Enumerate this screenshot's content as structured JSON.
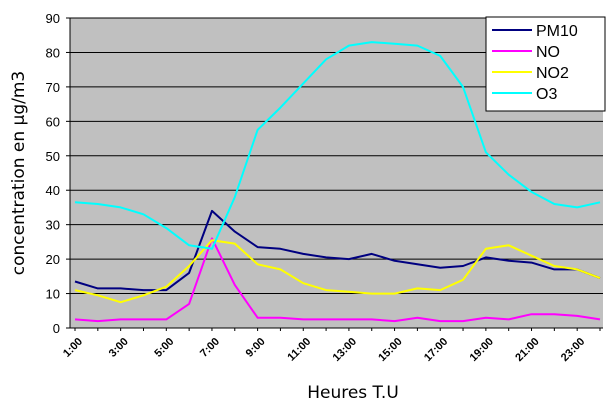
{
  "chart_data": {
    "type": "line",
    "xlabel": "Heures T.U",
    "ylabel": "concentration en µg/m3",
    "ylim": [
      0,
      90
    ],
    "yticks": [
      0,
      10,
      20,
      30,
      40,
      50,
      60,
      70,
      80,
      90
    ],
    "grid": true,
    "plot_background": "#c0c0c0",
    "legend_position": "top-right",
    "x_tick_labels": [
      "1:00",
      "3:00",
      "5:00",
      "7:00",
      "9:00",
      "11:00",
      "13:00",
      "15:00",
      "17:00",
      "19:00",
      "21:00",
      "23:00"
    ],
    "x": [
      1,
      2,
      3,
      4,
      5,
      6,
      7,
      8,
      9,
      10,
      11,
      12,
      13,
      14,
      15,
      16,
      17,
      18,
      19,
      20,
      21,
      22,
      23,
      24
    ],
    "series": [
      {
        "name": "PM10",
        "color": "#000080",
        "values": [
          13.5,
          11.5,
          11.5,
          11,
          11,
          16,
          34,
          28,
          23.5,
          23,
          21.5,
          20.5,
          20,
          21.5,
          19.5,
          18.5,
          17.5,
          18,
          20.5,
          19.5,
          19,
          17,
          17,
          14.5
        ]
      },
      {
        "name": "NO",
        "color": "#ff00ff",
        "values": [
          2.5,
          2,
          2.5,
          2.5,
          2.5,
          7,
          26,
          12.5,
          3,
          3,
          2.5,
          2.5,
          2.5,
          2.5,
          2,
          3,
          2,
          2,
          3,
          2.5,
          4,
          4,
          3.5,
          2.5
        ]
      },
      {
        "name": "NO2",
        "color": "#ffff00",
        "values": [
          11,
          9.5,
          7.5,
          9.5,
          12,
          18,
          25.5,
          24.5,
          18.5,
          17,
          13,
          11,
          10.5,
          10,
          10,
          11.5,
          11,
          14,
          23,
          24,
          21,
          18,
          17,
          14.5
        ]
      },
      {
        "name": "O3",
        "color": "#00ffff",
        "values": [
          36.5,
          36,
          35,
          33,
          29,
          24,
          23,
          38,
          57.5,
          64,
          71,
          78,
          82,
          83,
          82.5,
          82,
          79,
          70,
          51,
          44.5,
          39.5,
          36,
          35,
          36.5
        ]
      }
    ]
  }
}
